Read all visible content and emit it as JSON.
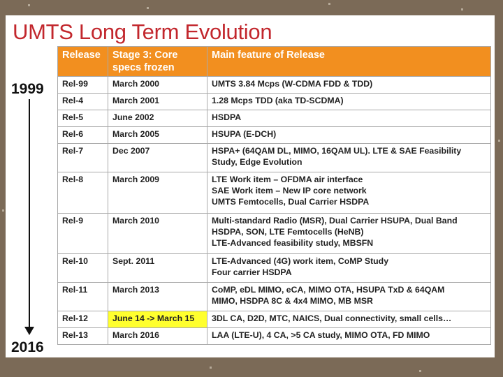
{
  "title": "UMTS Long Term Evolution",
  "timeline": {
    "start_year": "1999",
    "end_year": "2016"
  },
  "table": {
    "headers": [
      "Release",
      "Stage 3: Core specs frozen",
      "Main feature of Release"
    ],
    "rows": [
      {
        "release": "Rel-99",
        "frozen": "March 2000",
        "features": [
          "UMTS 3.84 Mcps (W-CDMA FDD & TDD)"
        ]
      },
      {
        "release": "Rel-4",
        "frozen": "March 2001",
        "features": [
          "1.28 Mcps TDD (aka TD-SCDMA)"
        ]
      },
      {
        "release": "Rel-5",
        "frozen": "June 2002",
        "features": [
          "HSDPA"
        ]
      },
      {
        "release": "Rel-6",
        "frozen": "March 2005",
        "features": [
          "HSUPA (E-DCH)"
        ]
      },
      {
        "release": "Rel-7",
        "frozen": "Dec 2007",
        "features": [
          "HSPA+ (64QAM DL, MIMO, 16QAM UL). LTE & SAE Feasibility",
          "Study, Edge Evolution"
        ]
      },
      {
        "release": "Rel-8",
        "frozen": "March 2009",
        "features": [
          "LTE Work item – OFDMA air interface",
          "SAE Work item – New IP core network",
          "UMTS Femtocells, Dual Carrier HSDPA"
        ]
      },
      {
        "release": "Rel-9",
        "frozen": "March 2010",
        "features": [
          "Multi-standard Radio (MSR), Dual Carrier HSUPA, Dual Band",
          "HSDPA, SON, LTE Femtocells (HeNB)",
          "LTE-Advanced feasibility study, MBSFN"
        ]
      },
      {
        "release": "Rel-10",
        "frozen": "Sept. 2011",
        "features": [
          "LTE-Advanced (4G) work item, CoMP Study",
          "Four carrier HSDPA"
        ]
      },
      {
        "release": "Rel-11",
        "frozen": "March 2013",
        "features": [
          "CoMP, eDL MIMO, eCA, MIMO OTA, HSUPA TxD & 64QAM",
          "MIMO, HSDPA 8C & 4x4 MIMO, MB MSR"
        ]
      },
      {
        "release": "Rel-12",
        "frozen": "June 14 -> March 15",
        "features": [
          "3DL CA, D2D, MTC, NAICS, Dual connectivity, small cells…"
        ],
        "highlight": true
      },
      {
        "release": "Rel-13",
        "frozen": "March 2016",
        "features": [
          "LAA (LTE-U), 4 CA, >5 CA study, MIMO OTA, FD MIMO"
        ]
      }
    ]
  },
  "colors": {
    "title": "#c2272d",
    "header_bg": "#f28f1f",
    "highlight": "#ffff2e",
    "frame": "#7b6a57"
  }
}
